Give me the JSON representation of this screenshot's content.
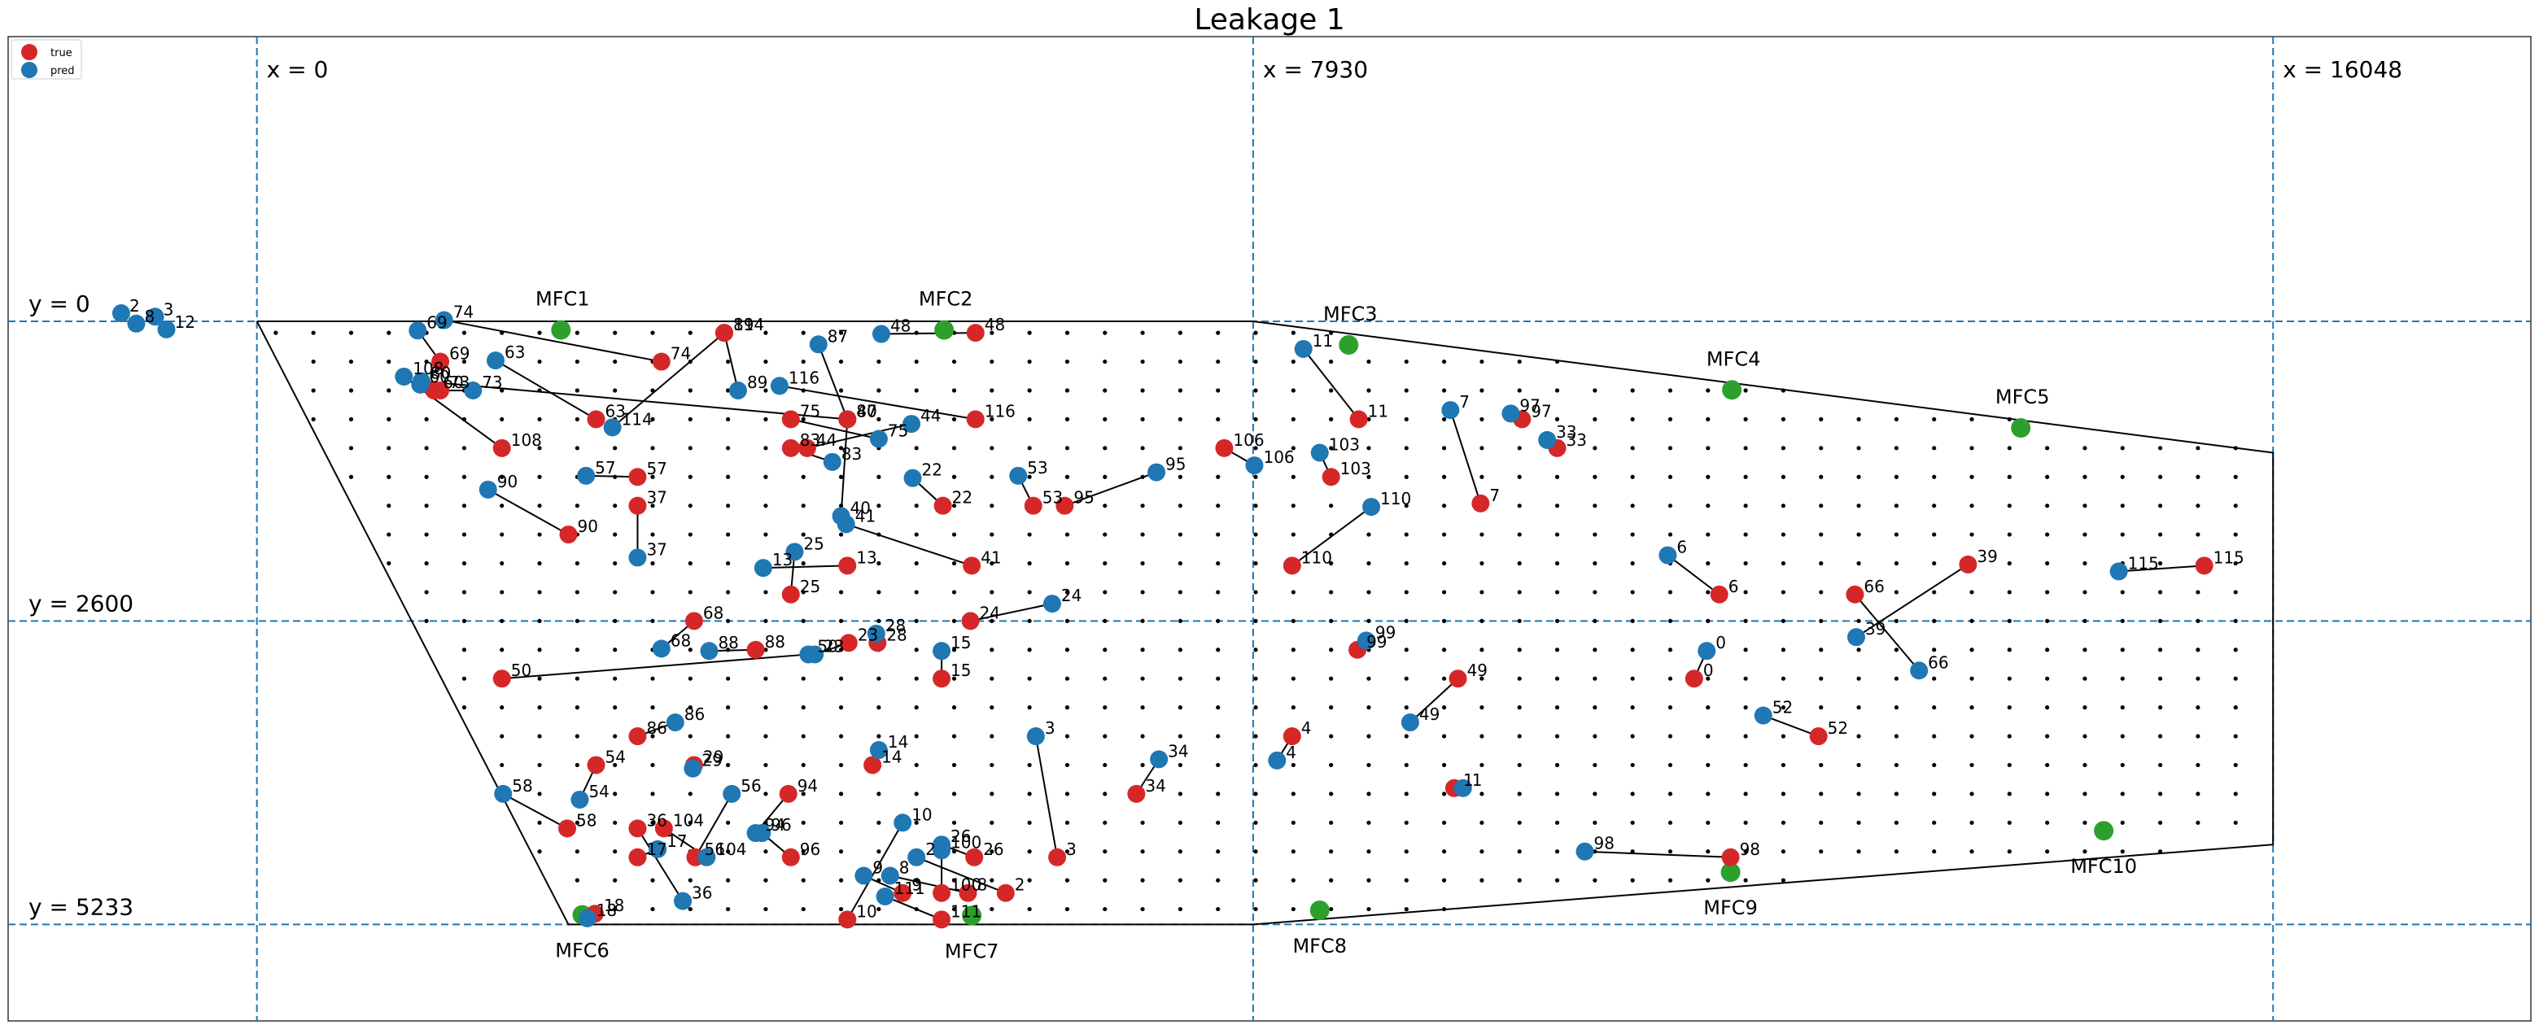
{
  "chart_data": {
    "type": "scatter",
    "title": "Leakage 1",
    "legend": {
      "placement": "top-left",
      "entries": [
        {
          "label": "true",
          "color": "#d62728"
        },
        {
          "label": "pred",
          "color": "#1f77b4"
        }
      ]
    },
    "grid": false,
    "xlim": [
      -1980,
      18100
    ],
    "ylim": [
      -2470,
      6070
    ],
    "guide_lines": {
      "x": [
        {
          "value": 0,
          "label": "x = 0"
        },
        {
          "value": 7930,
          "label": "x = 7930"
        },
        {
          "value": 16048,
          "label": "x = 16048"
        }
      ],
      "y": [
        {
          "value": 0,
          "label": "y = 0"
        },
        {
          "value": 2600,
          "label": "y = 2600"
        },
        {
          "value": 5233,
          "label": "y = 5233"
        }
      ]
    },
    "region_outline": [
      [
        0,
        0
      ],
      [
        7930,
        0
      ],
      [
        16048,
        1140
      ],
      [
        16048,
        4540
      ],
      [
        7930,
        5233
      ],
      [
        2480,
        5233
      ],
      [
        0,
        0
      ]
    ],
    "sensor_grid": {
      "x_step": 300,
      "y_step": 250
    },
    "mfcs": [
      {
        "label": "MFC1",
        "x": 2420,
        "y": 75
      },
      {
        "label": "MFC2",
        "x": 5470,
        "y": 75
      },
      {
        "label": "MFC3",
        "x": 8690,
        "y": 205
      },
      {
        "label": "MFC4",
        "x": 11740,
        "y": 595
      },
      {
        "label": "MFC5",
        "x": 14040,
        "y": 925
      },
      {
        "label": "MFC6",
        "x": 2590,
        "y": 5150
      },
      {
        "label": "MFC7",
        "x": 5690,
        "y": 5155
      },
      {
        "label": "MFC8",
        "x": 8460,
        "y": 5110
      },
      {
        "label": "MFC9",
        "x": 11730,
        "y": 4780
      },
      {
        "label": "MFC10",
        "x": 14700,
        "y": 4420
      }
    ],
    "pairs": [
      {
        "id": "0",
        "true": [
          11440,
          3100
        ],
        "pred": [
          11540,
          2860
        ]
      },
      {
        "id": "1",
        "true": [
          9530,
          4050
        ],
        "pred": [
          9600,
          4050
        ]
      },
      {
        "id": "2",
        "true": [
          5960,
          4960
        ],
        "pred": [
          5250,
          4650
        ]
      },
      {
        "id": "3",
        "true": [
          6370,
          4650
        ],
        "pred": [
          6200,
          3600
        ]
      },
      {
        "id": "4",
        "true": [
          8240,
          3600
        ],
        "pred": [
          8120,
          3810
        ]
      },
      {
        "id": "6",
        "true": [
          11640,
          2370
        ],
        "pred": [
          11230,
          2030
        ]
      },
      {
        "id": "7",
        "true": [
          9740,
          1580
        ],
        "pred": [
          9500,
          770
        ]
      },
      {
        "id": "8",
        "true": [
          5660,
          4960
        ],
        "pred": [
          5040,
          4810
        ]
      },
      {
        "id": "9",
        "true": [
          5140,
          4960
        ],
        "pred": [
          4830,
          4810
        ]
      },
      {
        "id": "10",
        "true": [
          4700,
          5190
        ],
        "pred": [
          5140,
          4350
        ]
      },
      {
        "id": "11",
        "true": [
          8770,
          850
        ],
        "pred": [
          8330,
          240
        ]
      },
      {
        "id": "13",
        "true": [
          4700,
          2120
        ],
        "pred": [
          4030,
          2140
        ]
      },
      {
        "id": "14",
        "true": [
          4900,
          3850
        ],
        "pred": [
          4950,
          3720
        ]
      },
      {
        "id": "15",
        "true": [
          5450,
          3100
        ],
        "pred": [
          5450,
          2860
        ]
      },
      {
        "id": "17",
        "true": [
          3030,
          4650
        ],
        "pred": [
          3190,
          4580
        ]
      },
      {
        "id": "18",
        "true": [
          2690,
          5140
        ],
        "pred": [
          2630,
          5180
        ]
      },
      {
        "id": "22",
        "true": [
          5460,
          1600
        ],
        "pred": [
          5220,
          1360
        ]
      },
      {
        "id": "23",
        "true": [
          4710,
          2790
        ],
        "pred": [
          4440,
          2890
        ]
      },
      {
        "id": "24",
        "true": [
          5680,
          2600
        ],
        "pred": [
          6330,
          2450
        ]
      },
      {
        "id": "25",
        "true": [
          4250,
          2370
        ],
        "pred": [
          4280,
          2000
        ]
      },
      {
        "id": "26",
        "true": [
          5710,
          4650
        ],
        "pred": [
          5450,
          4540
        ]
      },
      {
        "id": "28",
        "true": [
          4940,
          2790
        ],
        "pred": [
          4930,
          2710
        ]
      },
      {
        "id": "29",
        "true": [
          3480,
          3850
        ],
        "pred": [
          3470,
          3880
        ]
      },
      {
        "id": "33",
        "true": [
          10350,
          1100
        ],
        "pred": [
          10270,
          1030
        ]
      },
      {
        "id": "34",
        "true": [
          7000,
          4100
        ],
        "pred": [
          7180,
          3800
        ]
      },
      {
        "id": "36",
        "true": [
          3030,
          4400
        ],
        "pred": [
          3390,
          5030
        ]
      },
      {
        "id": "37",
        "true": [
          3030,
          1600
        ],
        "pred": [
          3030,
          2050
        ]
      },
      {
        "id": "39",
        "true": [
          13620,
          2110
        ],
        "pred": [
          12730,
          2740
        ]
      },
      {
        "id": "40",
        "true": [
          4700,
          850
        ],
        "pred": [
          4650,
          1690
        ]
      },
      {
        "id": "41",
        "true": [
          5690,
          2120
        ],
        "pred": [
          4690,
          1760
        ]
      },
      {
        "id": "44",
        "true": [
          4380,
          1100
        ],
        "pred": [
          5210,
          890
        ]
      },
      {
        "id": "48",
        "true": [
          5720,
          100
        ],
        "pred": [
          4970,
          110
        ]
      },
      {
        "id": "49",
        "true": [
          9560,
          3100
        ],
        "pred": [
          9180,
          3480
        ]
      },
      {
        "id": "50",
        "true": [
          1950,
          3100
        ],
        "pred": [
          4390,
          2890
        ]
      },
      {
        "id": "52",
        "true": [
          12430,
          3600
        ],
        "pred": [
          11990,
          3420
        ]
      },
      {
        "id": "53",
        "true": [
          6180,
          1600
        ],
        "pred": [
          6060,
          1340
        ]
      },
      {
        "id": "54",
        "true": [
          2700,
          3850
        ],
        "pred": [
          2570,
          4150
        ]
      },
      {
        "id": "56",
        "true": [
          3490,
          4650
        ],
        "pred": [
          3780,
          4100
        ]
      },
      {
        "id": "57",
        "true": [
          3030,
          1350
        ],
        "pred": [
          2620,
          1340
        ]
      },
      {
        "id": "58",
        "true": [
          2470,
          4400
        ],
        "pred": [
          1960,
          4100
        ]
      },
      {
        "id": "60",
        "true": [
          1410,
          600
        ],
        "pred": [
          1300,
          550
        ]
      },
      {
        "id": "63",
        "true": [
          2700,
          850
        ],
        "pred": [
          1900,
          340
        ]
      },
      {
        "id": "66",
        "true": [
          12720,
          2370
        ],
        "pred": [
          13230,
          3030
        ]
      },
      {
        "id": "68",
        "true": [
          3480,
          2600
        ],
        "pred": [
          3220,
          2840
        ]
      },
      {
        "id": "69",
        "true": [
          1460,
          350
        ],
        "pred": [
          1280,
          80
        ]
      },
      {
        "id": "73",
        "true": [
          1460,
          600
        ],
        "pred": [
          1720,
          600
        ]
      },
      {
        "id": "74",
        "true": [
          3220,
          350
        ],
        "pred": [
          1490,
          -10
        ]
      },
      {
        "id": "75",
        "true": [
          4250,
          850
        ],
        "pred": [
          4950,
          1020
        ]
      },
      {
        "id": "80",
        "true": [
          4700,
          850
        ],
        "pred": [
          1310,
          520
        ]
      },
      {
        "id": "83",
        "true": [
          4250,
          1100
        ],
        "pred": [
          4580,
          1220
        ]
      },
      {
        "id": "86",
        "true": [
          3030,
          3600
        ],
        "pred": [
          3330,
          3480
        ]
      },
      {
        "id": "87",
        "true": [
          4700,
          850
        ],
        "pred": [
          4470,
          200
        ]
      },
      {
        "id": "88",
        "true": [
          3970,
          2850
        ],
        "pred": [
          3600,
          2860
        ]
      },
      {
        "id": "89",
        "true": [
          3720,
          100
        ],
        "pred": [
          3830,
          600
        ]
      },
      {
        "id": "90",
        "true": [
          2480,
          1850
        ],
        "pred": [
          1840,
          1460
        ]
      },
      {
        "id": "94",
        "true": [
          4230,
          4100
        ],
        "pred": [
          3970,
          4440
        ]
      },
      {
        "id": "95",
        "true": [
          6430,
          1600
        ],
        "pred": [
          7160,
          1310
        ]
      },
      {
        "id": "96",
        "true": [
          4250,
          4650
        ],
        "pred": [
          4020,
          4440
        ]
      },
      {
        "id": "97",
        "true": [
          10070,
          850
        ],
        "pred": [
          9980,
          800
        ]
      },
      {
        "id": "98",
        "true": [
          11730,
          4650
        ],
        "pred": [
          10570,
          4600
        ]
      },
      {
        "id": "99",
        "true": [
          8760,
          2850
        ],
        "pred": [
          8830,
          2770
        ]
      },
      {
        "id": "100",
        "true": [
          5450,
          4960
        ],
        "pred": [
          5450,
          4590
        ]
      },
      {
        "id": "103",
        "true": [
          8550,
          1350
        ],
        "pred": [
          8460,
          1140
        ]
      },
      {
        "id": "104",
        "true": [
          3240,
          4400
        ],
        "pred": [
          3580,
          4650
        ]
      },
      {
        "id": "106",
        "true": [
          7700,
          1100
        ],
        "pred": [
          7940,
          1250
        ]
      },
      {
        "id": "108",
        "true": [
          1950,
          1100
        ],
        "pred": [
          1170,
          480
        ]
      },
      {
        "id": "110",
        "true": [
          8240,
          2120
        ],
        "pred": [
          8870,
          1610
        ]
      },
      {
        "id": "111",
        "true": [
          5450,
          5190
        ],
        "pred": [
          5000,
          4990
        ]
      },
      {
        "id": "114",
        "true": [
          3720,
          100
        ],
        "pred": [
          2830,
          920
        ]
      },
      {
        "id": "115",
        "true": [
          15500,
          2120
        ],
        "pred": [
          14820,
          2170
        ]
      },
      {
        "id": "116",
        "true": [
          5720,
          850
        ],
        "pred": [
          4160,
          560
        ]
      }
    ],
    "anomalous_preds": [
      {
        "id": "2",
        "x": -1080,
        "y": -70
      },
      {
        "id": "3",
        "x": -810,
        "y": -40
      },
      {
        "id": "8",
        "x": -960,
        "y": 20
      },
      {
        "id": "12",
        "x": -720,
        "y": 70
      }
    ]
  }
}
